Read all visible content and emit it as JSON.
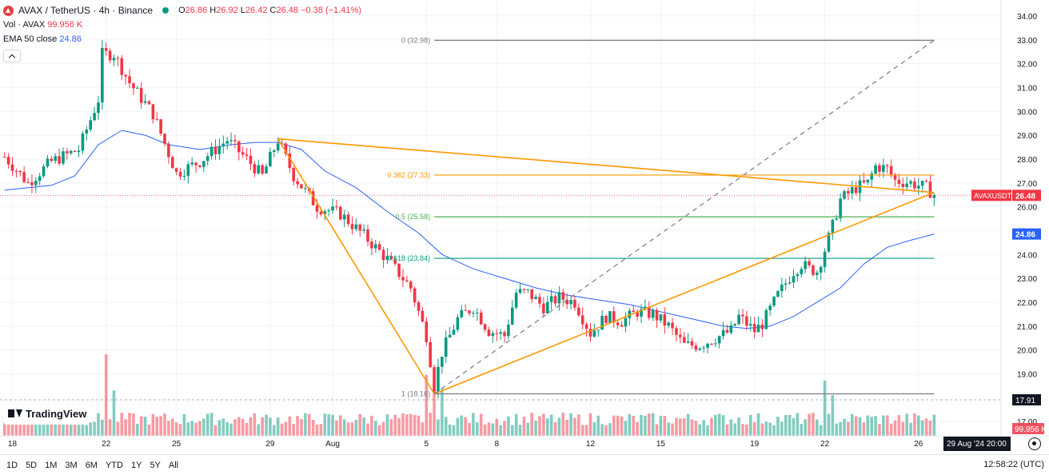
{
  "legend": {
    "symbol": "AVAX / TetherUS · 4h · Binance",
    "icon": "avax-logo-icon",
    "ohlc": {
      "o_label": "O",
      "o": "26.86",
      "h_label": "H",
      "h": "26.92",
      "l_label": "L",
      "l": "26.42",
      "c_label": "C",
      "c": "26.48",
      "change": "−0.38 (−1.41%)"
    },
    "vol_label": "Vol · AVAX",
    "vol_value": "99.956 K",
    "ema_label": "EMA 50 close",
    "ema_value": "24.86"
  },
  "branding": {
    "logo_text": "TradingView"
  },
  "ranges": [
    "1D",
    "5D",
    "1M",
    "3M",
    "6M",
    "YTD",
    "1Y",
    "5Y",
    "All"
  ],
  "clock": "12:58:22 (UTC)",
  "crosshair_date": "29 Aug '24  20:00",
  "colors": {
    "up": "#089981",
    "down": "#f23645",
    "ema": "#2962ff",
    "fib": "#ff9800",
    "fib_green": "#4caf50",
    "fib_teal": "#089981",
    "grey": "#787b86"
  },
  "chart_data": {
    "type": "candlestick",
    "y_range": [
      16.3,
      34.4
    ],
    "y_ticks": [
      "34.00",
      "33.00",
      "32.00",
      "31.00",
      "30.00",
      "29.00",
      "28.00",
      "27.00",
      "26.00",
      "25.00",
      "24.00",
      "23.00",
      "22.00",
      "21.00",
      "20.00",
      "19.00",
      "17.00"
    ],
    "x_ticks": [
      {
        "label": "18",
        "t": 0
      },
      {
        "label": "22",
        "t": 24
      },
      {
        "label": "25",
        "t": 42
      },
      {
        "label": "29",
        "t": 66
      },
      {
        "label": "Aug",
        "t": 82
      },
      {
        "label": "5",
        "t": 106
      },
      {
        "label": "8",
        "t": 124
      },
      {
        "label": "12",
        "t": 148
      },
      {
        "label": "15",
        "t": 166
      },
      {
        "label": "19",
        "t": 190
      },
      {
        "label": "22",
        "t": 208
      },
      {
        "label": "26",
        "t": 232
      }
    ],
    "anchors": [
      [
        -2,
        28.1
      ],
      [
        4,
        27.0
      ],
      [
        10,
        27.9
      ],
      [
        17,
        28.4
      ],
      [
        22,
        30.5
      ],
      [
        23,
        32.4
      ],
      [
        26,
        32.4
      ],
      [
        30,
        31.2
      ],
      [
        36,
        29.9
      ],
      [
        42,
        27.4
      ],
      [
        48,
        27.9
      ],
      [
        55,
        28.8
      ],
      [
        60,
        28.0
      ],
      [
        64,
        27.3
      ],
      [
        68,
        28.8
      ],
      [
        72,
        27.3
      ],
      [
        78,
        26.0
      ],
      [
        84,
        25.7
      ],
      [
        90,
        24.8
      ],
      [
        96,
        23.8
      ],
      [
        102,
        22.6
      ],
      [
        106,
        20.6
      ],
      [
        108,
        18.5
      ],
      [
        110,
        19.9
      ],
      [
        114,
        21.3
      ],
      [
        118,
        21.8
      ],
      [
        122,
        20.8
      ],
      [
        126,
        20.6
      ],
      [
        129,
        22.4
      ],
      [
        132,
        22.4
      ],
      [
        136,
        21.8
      ],
      [
        140,
        22.2
      ],
      [
        144,
        22.0
      ],
      [
        148,
        20.7
      ],
      [
        152,
        21.4
      ],
      [
        156,
        21.2
      ],
      [
        160,
        21.6
      ],
      [
        164,
        21.5
      ],
      [
        168,
        21.0
      ],
      [
        172,
        20.2
      ],
      [
        176,
        20.2
      ],
      [
        180,
        20.5
      ],
      [
        184,
        20.8
      ],
      [
        186,
        21.4
      ],
      [
        190,
        20.8
      ],
      [
        192,
        21.1
      ],
      [
        196,
        22.3
      ],
      [
        200,
        23.3
      ],
      [
        202,
        23.6
      ],
      [
        204,
        23.4
      ],
      [
        206,
        23.3
      ],
      [
        208,
        24.2
      ],
      [
        210,
        25.2
      ],
      [
        212,
        26.3
      ],
      [
        216,
        26.8
      ],
      [
        219,
        27.0
      ],
      [
        221,
        27.7
      ],
      [
        224,
        27.6
      ],
      [
        226,
        27.1
      ],
      [
        230,
        27.0
      ],
      [
        234,
        26.8
      ],
      [
        236,
        26.48
      ]
    ],
    "ema50": [
      [
        -2,
        26.7
      ],
      [
        10,
        26.9
      ],
      [
        16,
        27.3
      ],
      [
        22,
        28.6
      ],
      [
        28,
        29.2
      ],
      [
        34,
        29.0
      ],
      [
        40,
        28.6
      ],
      [
        48,
        28.4
      ],
      [
        56,
        28.6
      ],
      [
        62,
        28.7
      ],
      [
        68,
        28.7
      ],
      [
        74,
        28.4
      ],
      [
        80,
        27.5
      ],
      [
        88,
        26.8
      ],
      [
        96,
        25.8
      ],
      [
        104,
        24.9
      ],
      [
        110,
        24.0
      ],
      [
        118,
        23.4
      ],
      [
        126,
        23.0
      ],
      [
        134,
        22.6
      ],
      [
        142,
        22.3
      ],
      [
        150,
        22.1
      ],
      [
        158,
        21.9
      ],
      [
        166,
        21.6
      ],
      [
        174,
        21.3
      ],
      [
        182,
        21.0
      ],
      [
        188,
        20.9
      ],
      [
        194,
        21.0
      ],
      [
        200,
        21.4
      ],
      [
        206,
        22.0
      ],
      [
        212,
        22.6
      ],
      [
        218,
        23.6
      ],
      [
        224,
        24.3
      ],
      [
        230,
        24.6
      ],
      [
        236,
        24.86
      ]
    ],
    "volume_range": [
      0,
      165
    ],
    "volume_spikes": [
      [
        24,
        140
      ],
      [
        26,
        78
      ],
      [
        106,
        105
      ],
      [
        108,
        98
      ],
      [
        110,
        82
      ],
      [
        208,
        95
      ],
      [
        210,
        70
      ]
    ],
    "price_tags": [
      {
        "label": "AVAXUSDT",
        "value": 26.48,
        "text": "26.48",
        "color": "#f23645"
      },
      {
        "label": "",
        "value": 24.86,
        "text": "24.86",
        "color": "#2962ff"
      }
    ],
    "crosshair_price": {
      "value": 17.91,
      "text": "17.91"
    },
    "volume_tag": "99.956 K",
    "fibonacci": [
      {
        "label": "0 (32.98)",
        "value": 32.98,
        "color": "#787b86"
      },
      {
        "label": "0.382 (27.33)",
        "value": 27.33,
        "color": "#ff9800"
      },
      {
        "label": "0.5 (25.58)",
        "value": 25.58,
        "color": "#4caf50"
      },
      {
        "label": "0.618 (23.84)",
        "value": 23.84,
        "color": "#089981"
      },
      {
        "label": "1 (18.16)",
        "value": 18.16,
        "color": "#787b86"
      }
    ],
    "fib_span": {
      "t_start": 108,
      "t_end": 236
    },
    "trendlines": [
      {
        "points": [
          [
            68,
            28.85
          ],
          [
            236,
            26.6
          ]
        ],
        "color": "#ff9800"
      },
      {
        "points": [
          [
            68,
            28.85
          ],
          [
            108,
            18.16
          ]
        ],
        "color": "#ff9800"
      },
      {
        "points": [
          [
            108,
            18.16
          ],
          [
            236,
            26.6
          ]
        ],
        "color": "#ff9800"
      },
      {
        "points": [
          [
            108,
            18.16
          ],
          [
            236,
            32.98
          ]
        ],
        "color": "#787b86",
        "dashed": true
      }
    ]
  }
}
